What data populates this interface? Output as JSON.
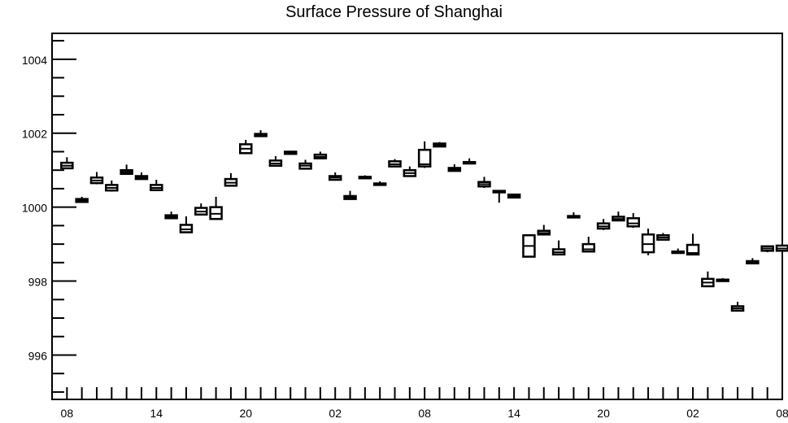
{
  "chart_data": {
    "type": "box",
    "title": "Surface Pressure of Shanghai",
    "xlabel": "",
    "ylabel": "",
    "ylim": [
      994.8,
      1004.7
    ],
    "y_ticks": [
      996,
      998,
      1000,
      1002,
      1004
    ],
    "y_tick_labels": [
      "996",
      "998",
      "1000",
      "1002",
      "1004"
    ],
    "x_index_range": [
      -1,
      48
    ],
    "x_tick_positions": [
      0,
      6,
      12,
      18,
      24,
      30,
      36,
      42,
      48
    ],
    "x_tick_labels": [
      "08",
      "14",
      "20",
      "02",
      "08",
      "14",
      "20",
      "02",
      "08"
    ],
    "grid": false,
    "boxes": [
      {
        "i": 0,
        "lo": 1001.05,
        "q1": 1001.05,
        "med": 1001.12,
        "q3": 1001.2,
        "hi": 1001.35
      },
      {
        "i": 1,
        "lo": 1000.14,
        "q1": 1000.14,
        "med": 1000.18,
        "q3": 1000.22,
        "hi": 1000.28
      },
      {
        "i": 2,
        "lo": 1000.62,
        "q1": 1000.65,
        "med": 1000.72,
        "q3": 1000.8,
        "hi": 1000.95
      },
      {
        "i": 3,
        "lo": 1000.42,
        "q1": 1000.45,
        "med": 1000.52,
        "q3": 1000.6,
        "hi": 1000.72
      },
      {
        "i": 4,
        "lo": 1000.88,
        "q1": 1000.9,
        "med": 1000.95,
        "q3": 1001.0,
        "hi": 1001.15
      },
      {
        "i": 5,
        "lo": 1000.74,
        "q1": 1000.76,
        "med": 1000.8,
        "q3": 1000.84,
        "hi": 1000.94
      },
      {
        "i": 6,
        "lo": 1000.44,
        "q1": 1000.46,
        "med": 1000.52,
        "q3": 1000.6,
        "hi": 1000.74
      },
      {
        "i": 7,
        "lo": 999.7,
        "q1": 999.7,
        "med": 999.74,
        "q3": 999.78,
        "hi": 999.88
      },
      {
        "i": 8,
        "lo": 999.3,
        "q1": 999.32,
        "med": 999.4,
        "q3": 999.52,
        "hi": 999.75
      },
      {
        "i": 9,
        "lo": 999.78,
        "q1": 999.8,
        "med": 999.88,
        "q3": 999.98,
        "hi": 1000.1
      },
      {
        "i": 10,
        "lo": 999.68,
        "q1": 999.68,
        "med": 999.82,
        "q3": 1000.0,
        "hi": 1000.28
      },
      {
        "i": 11,
        "lo": 1000.56,
        "q1": 1000.58,
        "med": 1000.66,
        "q3": 1000.76,
        "hi": 1000.92
      },
      {
        "i": 12,
        "lo": 1001.44,
        "q1": 1001.46,
        "med": 1001.58,
        "q3": 1001.7,
        "hi": 1001.82
      },
      {
        "i": 13,
        "lo": 1001.9,
        "q1": 1001.92,
        "med": 1001.95,
        "q3": 1001.98,
        "hi": 1002.08
      },
      {
        "i": 14,
        "lo": 1001.12,
        "q1": 1001.12,
        "med": 1001.18,
        "q3": 1001.26,
        "hi": 1001.38
      },
      {
        "i": 15,
        "lo": 1001.44,
        "q1": 1001.44,
        "med": 1001.47,
        "q3": 1001.5,
        "hi": 1001.52
      },
      {
        "i": 16,
        "lo": 1001.02,
        "q1": 1001.04,
        "med": 1001.12,
        "q3": 1001.18,
        "hi": 1001.28
      },
      {
        "i": 17,
        "lo": 1001.3,
        "q1": 1001.32,
        "med": 1001.36,
        "q3": 1001.42,
        "hi": 1001.5
      },
      {
        "i": 18,
        "lo": 1000.74,
        "q1": 1000.74,
        "med": 1000.8,
        "q3": 1000.84,
        "hi": 1000.94
      },
      {
        "i": 19,
        "lo": 1000.22,
        "q1": 1000.22,
        "med": 1000.26,
        "q3": 1000.3,
        "hi": 1000.44
      },
      {
        "i": 20,
        "lo": 1000.76,
        "q1": 1000.78,
        "med": 1000.8,
        "q3": 1000.82,
        "hi": 1000.86
      },
      {
        "i": 21,
        "lo": 1000.58,
        "q1": 1000.6,
        "med": 1000.62,
        "q3": 1000.64,
        "hi": 1000.7
      },
      {
        "i": 22,
        "lo": 1001.08,
        "q1": 1001.1,
        "med": 1001.16,
        "q3": 1001.24,
        "hi": 1001.3
      },
      {
        "i": 23,
        "lo": 1000.84,
        "q1": 1000.84,
        "med": 1000.92,
        "q3": 1001.0,
        "hi": 1001.1
      },
      {
        "i": 24,
        "lo": 1001.06,
        "q1": 1001.1,
        "med": 1001.16,
        "q3": 1001.55,
        "hi": 1001.78
      },
      {
        "i": 25,
        "lo": 1001.62,
        "q1": 1001.64,
        "med": 1001.68,
        "q3": 1001.72,
        "hi": 1001.76
      },
      {
        "i": 26,
        "lo": 1000.98,
        "q1": 1000.98,
        "med": 1001.02,
        "q3": 1001.06,
        "hi": 1001.16
      },
      {
        "i": 27,
        "lo": 1001.18,
        "q1": 1001.18,
        "med": 1001.2,
        "q3": 1001.22,
        "hi": 1001.32
      },
      {
        "i": 28,
        "lo": 1000.52,
        "q1": 1000.56,
        "med": 1000.62,
        "q3": 1000.68,
        "hi": 1000.82
      },
      {
        "i": 29,
        "lo": 1000.12,
        "q1": 1000.4,
        "med": 1000.42,
        "q3": 1000.44,
        "hi": 1000.46
      },
      {
        "i": 30,
        "lo": 1000.24,
        "q1": 1000.26,
        "med": 1000.3,
        "q3": 1000.34,
        "hi": 1000.36
      },
      {
        "i": 31,
        "lo": 998.66,
        "q1": 998.66,
        "med": 998.95,
        "q3": 999.24,
        "hi": 999.24
      },
      {
        "i": 32,
        "lo": 999.24,
        "q1": 999.26,
        "med": 999.3,
        "q3": 999.36,
        "hi": 999.52
      },
      {
        "i": 33,
        "lo": 998.72,
        "q1": 998.72,
        "med": 998.78,
        "q3": 998.86,
        "hi": 999.1
      },
      {
        "i": 34,
        "lo": 999.7,
        "q1": 999.72,
        "med": 999.74,
        "q3": 999.76,
        "hi": 999.86
      },
      {
        "i": 35,
        "lo": 998.8,
        "q1": 998.8,
        "med": 998.86,
        "q3": 999.0,
        "hi": 999.2
      },
      {
        "i": 36,
        "lo": 999.38,
        "q1": 999.42,
        "med": 999.48,
        "q3": 999.56,
        "hi": 999.68
      },
      {
        "i": 37,
        "lo": 999.62,
        "q1": 999.64,
        "med": 999.68,
        "q3": 999.74,
        "hi": 999.88
      },
      {
        "i": 38,
        "lo": 999.44,
        "q1": 999.48,
        "med": 999.56,
        "q3": 999.7,
        "hi": 999.84
      },
      {
        "i": 39,
        "lo": 998.7,
        "q1": 998.78,
        "med": 999.0,
        "q3": 999.26,
        "hi": 999.42
      },
      {
        "i": 40,
        "lo": 999.1,
        "q1": 999.12,
        "med": 999.18,
        "q3": 999.24,
        "hi": 999.3
      },
      {
        "i": 41,
        "lo": 998.74,
        "q1": 998.76,
        "med": 998.78,
        "q3": 998.8,
        "hi": 998.88
      },
      {
        "i": 42,
        "lo": 998.72,
        "q1": 998.72,
        "med": 998.76,
        "q3": 998.98,
        "hi": 999.28
      },
      {
        "i": 43,
        "lo": 997.86,
        "q1": 997.86,
        "med": 997.96,
        "q3": 998.06,
        "hi": 998.26
      },
      {
        "i": 44,
        "lo": 997.98,
        "q1": 998.0,
        "med": 998.02,
        "q3": 998.04,
        "hi": 998.08
      },
      {
        "i": 45,
        "lo": 997.2,
        "q1": 997.2,
        "med": 997.26,
        "q3": 997.32,
        "hi": 997.44
      },
      {
        "i": 46,
        "lo": 998.46,
        "q1": 998.48,
        "med": 998.5,
        "q3": 998.54,
        "hi": 998.62
      },
      {
        "i": 47,
        "lo": 998.78,
        "q1": 998.82,
        "med": 998.88,
        "q3": 998.94,
        "hi": 998.96
      },
      {
        "i": 48,
        "lo": 998.8,
        "q1": 998.82,
        "med": 998.88,
        "q3": 998.96,
        "hi": 999.02
      }
    ]
  }
}
